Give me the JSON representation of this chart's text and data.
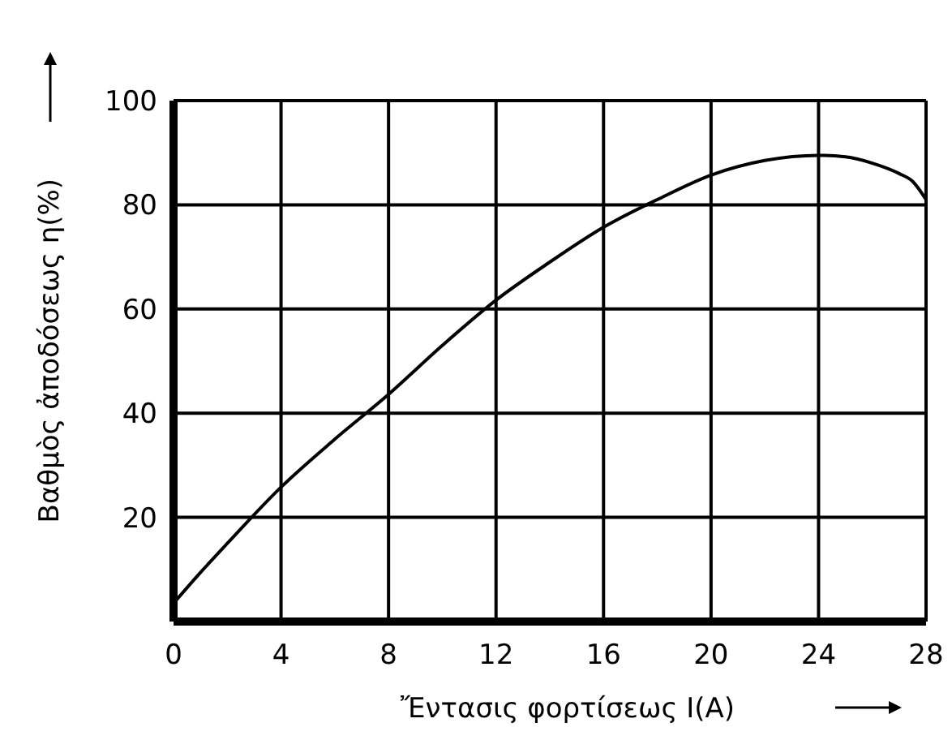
{
  "chart_data": {
    "type": "line",
    "xlabel": "Ἔντασις φορτίσεως I(A)",
    "ylabel": "Βαθμὸς ἀποδόσεως η(%)",
    "series": [
      {
        "color": "#000000",
        "x": [
          0,
          1,
          2,
          4,
          6,
          8,
          10,
          12,
          14,
          16,
          18,
          20,
          22,
          24,
          25,
          26,
          27,
          27.5,
          28
        ],
        "values": [
          3.5,
          9.4,
          15,
          25.8,
          35,
          43.6,
          53,
          61.7,
          69,
          75.7,
          81,
          85.7,
          88.5,
          89.5,
          89.2,
          88,
          86,
          84.5,
          81
        ]
      }
    ],
    "xlim": [
      0,
      28
    ],
    "xticks": [
      0,
      4,
      8,
      12,
      16,
      20,
      24,
      28
    ],
    "ylim": [
      0,
      100
    ],
    "yticks": [
      20,
      40,
      60,
      80,
      100
    ],
    "grid": true,
    "marker": "none",
    "line_style": "solid"
  }
}
